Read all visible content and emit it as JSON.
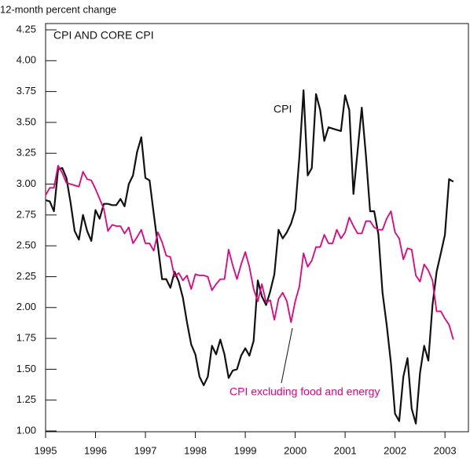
{
  "chart_data": {
    "type": "line",
    "title": "CPI AND CORE CPI",
    "y_label": "12-month percent change",
    "x": [
      1995.0,
      1995.083,
      1995.167,
      1995.25,
      1995.333,
      1995.417,
      1995.5,
      1995.583,
      1995.667,
      1995.75,
      1995.833,
      1995.917,
      1996.0,
      1996.083,
      1996.167,
      1996.25,
      1996.333,
      1996.417,
      1996.5,
      1996.583,
      1996.667,
      1996.75,
      1996.833,
      1996.917,
      1997.0,
      1997.083,
      1997.167,
      1997.25,
      1997.333,
      1997.417,
      1997.5,
      1997.583,
      1997.667,
      1997.75,
      1997.833,
      1997.917,
      1998.0,
      1998.083,
      1998.167,
      1998.25,
      1998.333,
      1998.417,
      1998.5,
      1998.583,
      1998.667,
      1998.75,
      1998.833,
      1998.917,
      1999.0,
      1999.083,
      1999.167,
      1999.25,
      1999.333,
      1999.417,
      1999.5,
      1999.583,
      1999.667,
      1999.75,
      1999.833,
      1999.917,
      2000.0,
      2000.083,
      2000.167,
      2000.25,
      2000.333,
      2000.417,
      2000.5,
      2000.583,
      2000.667,
      2000.75,
      2000.833,
      2000.917,
      2001.0,
      2001.083,
      2001.167,
      2001.25,
      2001.333,
      2001.417,
      2001.5,
      2001.583,
      2001.667,
      2001.75,
      2001.833,
      2001.917,
      2002.0,
      2002.083,
      2002.167,
      2002.25,
      2002.333,
      2002.417,
      2002.5,
      2002.583,
      2002.667,
      2002.75,
      2002.833,
      2002.917,
      2003.0,
      2003.083,
      2003.167
    ],
    "series": [
      {
        "name": "CPI",
        "color": "#111111",
        "values": [
          2.87,
          2.86,
          2.78,
          3.12,
          3.13,
          3.05,
          2.85,
          2.62,
          2.55,
          2.75,
          2.62,
          2.54,
          2.79,
          2.72,
          2.84,
          2.84,
          2.83,
          2.83,
          2.88,
          2.82,
          3.0,
          3.07,
          3.26,
          3.38,
          3.05,
          3.03,
          2.76,
          2.5,
          2.23,
          2.23,
          2.16,
          2.29,
          2.21,
          2.08,
          1.88,
          1.7,
          1.62,
          1.44,
          1.37,
          1.44,
          1.69,
          1.62,
          1.74,
          1.62,
          1.43,
          1.49,
          1.5,
          1.61,
          1.67,
          1.61,
          1.73,
          2.22,
          2.09,
          2.02,
          2.13,
          2.27,
          2.63,
          2.56,
          2.61,
          2.68,
          2.79,
          3.22,
          3.76,
          3.07,
          3.13,
          3.73,
          3.6,
          3.35,
          3.46,
          3.45,
          3.44,
          3.43,
          3.72,
          3.6,
          2.92,
          3.27,
          3.62,
          3.23,
          2.78,
          2.78,
          2.59,
          2.12,
          1.86,
          1.55,
          1.14,
          1.08,
          1.44,
          1.59,
          1.18,
          1.06,
          1.47,
          1.69,
          1.57,
          2.02,
          2.29,
          2.44,
          2.59,
          3.04,
          3.02
        ]
      },
      {
        "name": "CPI excluding food and energy",
        "color": "#e6007e",
        "values": [
          2.91,
          2.97,
          2.97,
          3.15,
          3.09,
          3.01,
          3.0,
          2.99,
          2.98,
          3.1,
          3.04,
          3.03,
          2.96,
          2.88,
          2.8,
          2.62,
          2.67,
          2.66,
          2.66,
          2.6,
          2.65,
          2.52,
          2.57,
          2.63,
          2.52,
          2.52,
          2.46,
          2.61,
          2.53,
          2.42,
          2.41,
          2.25,
          2.28,
          2.22,
          2.26,
          2.15,
          2.27,
          2.26,
          2.26,
          2.25,
          2.14,
          2.19,
          2.23,
          2.23,
          2.47,
          2.34,
          2.23,
          2.35,
          2.45,
          2.33,
          2.15,
          2.05,
          2.19,
          2.04,
          2.06,
          1.9,
          2.07,
          2.12,
          2.05,
          1.88,
          2.05,
          2.17,
          2.44,
          2.33,
          2.38,
          2.49,
          2.49,
          2.59,
          2.52,
          2.52,
          2.63,
          2.56,
          2.61,
          2.73,
          2.66,
          2.6,
          2.6,
          2.7,
          2.7,
          2.65,
          2.63,
          2.63,
          2.72,
          2.78,
          2.61,
          2.56,
          2.39,
          2.48,
          2.47,
          2.26,
          2.21,
          2.35,
          2.3,
          2.22,
          1.97,
          1.97,
          1.91,
          1.86,
          1.74
        ]
      }
    ],
    "xlim": [
      1995,
      2003.47
    ],
    "xticks": [
      1995,
      1996,
      1997,
      1998,
      1999,
      2000,
      2001,
      2002,
      2003
    ],
    "ylim": [
      1,
      4.25
    ],
    "yticks": [
      {
        "value": 1,
        "label": "1.00"
      },
      {
        "value": 1.25,
        "label": "1.25"
      },
      {
        "value": 1.5,
        "label": "1.50"
      },
      {
        "value": 1.75,
        "label": "1.75"
      },
      {
        "value": 2,
        "label": "2.00"
      },
      {
        "value": 2.25,
        "label": "2.25"
      },
      {
        "value": 2.5,
        "label": "2.50"
      },
      {
        "value": 2.75,
        "label": "2.75"
      },
      {
        "value": 3,
        "label": "3.00"
      },
      {
        "value": 3.25,
        "label": "3.25"
      },
      {
        "value": 3.5,
        "label": "3.50"
      },
      {
        "value": 3.75,
        "label": "3.75"
      },
      {
        "value": 4,
        "label": "4.00"
      },
      {
        "value": 4.25,
        "label": "4.25"
      }
    ]
  }
}
